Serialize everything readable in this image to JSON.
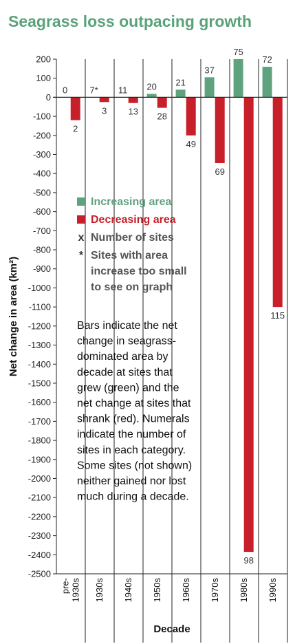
{
  "chart_data": {
    "type": "bar",
    "title": "Seagrass loss outpacing growth",
    "xlabel": "Decade",
    "ylabel": "Net change in area (km²)",
    "ylim": [
      -2500,
      200
    ],
    "yticks": [
      200,
      100,
      0,
      -100,
      -200,
      -300,
      -400,
      -500,
      -600,
      -700,
      -800,
      -900,
      -1000,
      -1100,
      -1200,
      -1300,
      -1400,
      -1500,
      -1600,
      -1700,
      -1800,
      -1900,
      -2000,
      -2100,
      -2200,
      -2300,
      -2400,
      -2500
    ],
    "categories": [
      "pre-1930s",
      "1930s",
      "1940s",
      "1950s",
      "1960s",
      "1970s",
      "1980s",
      "1990s"
    ],
    "category_labels": [
      [
        "pre-",
        "1930s"
      ],
      [
        "1930s"
      ],
      [
        "1940s"
      ],
      [
        "1950s"
      ],
      [
        "1960s"
      ],
      [
        "1970s"
      ],
      [
        "1980s"
      ],
      [
        "1990s"
      ]
    ],
    "series": [
      {
        "name": "Increasing area",
        "color": "#5fa37e",
        "values": [
          0,
          0,
          0,
          18,
          40,
          105,
          200,
          160
        ],
        "site_counts": [
          "0",
          "7*",
          "11",
          "20",
          "21",
          "37",
          "75",
          "72"
        ]
      },
      {
        "name": "Decreasing area",
        "color": "#c8202a",
        "values": [
          -120,
          -25,
          -30,
          -55,
          -200,
          -345,
          -2385,
          -1100
        ],
        "site_counts": [
          "2",
          "3",
          "13",
          "28",
          "49",
          "69",
          "98",
          "115"
        ]
      }
    ],
    "legend": {
      "position": "inside-left",
      "items": [
        {
          "marker": "square",
          "color": "#5fa37e",
          "lines": [
            "Increasing area"
          ]
        },
        {
          "marker": "square",
          "color": "#c8202a",
          "lines": [
            "Decreasing area"
          ]
        },
        {
          "marker": "x",
          "color": "#555555",
          "lines": [
            "Number of sites"
          ]
        },
        {
          "marker": "*",
          "color": "#555555",
          "lines": [
            "Sites with area",
            "increase too small",
            "to see on graph"
          ]
        }
      ]
    },
    "note_lines": [
      "Bars indicate the net",
      "change in seagrass-",
      "dominated area by",
      "decade at sites that",
      "grew (green) and the",
      "net change at sites that",
      "shrank (red). Numerals",
      "indicate the number of",
      "sites in each category.",
      "Some sites (not shown)",
      "neither gained nor lost",
      "much during a decade."
    ],
    "grid": false
  }
}
